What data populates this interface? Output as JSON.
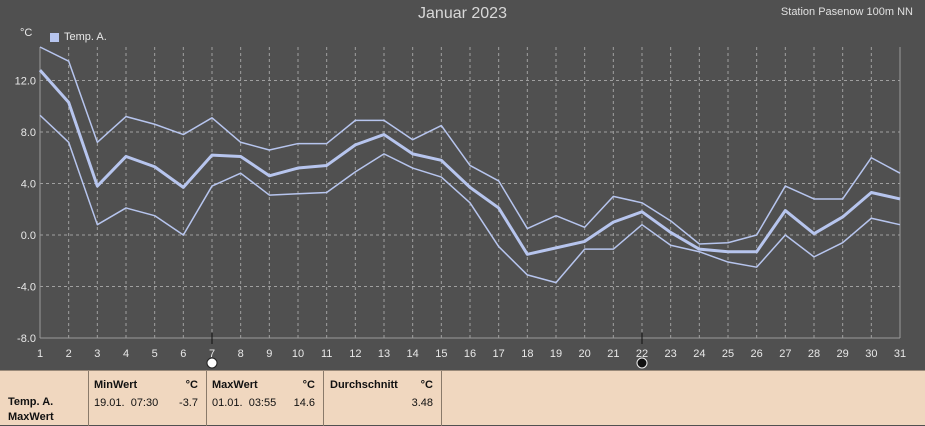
{
  "title": "Januar 2023",
  "station": "Station Pasenow 100m NN",
  "unit": "°C",
  "legend_label": "Temp. A.",
  "colors": {
    "series": "#b7c5ee",
    "background": "#505050",
    "grid": "#a0a0a0",
    "stats_bg": "#f0d7bf"
  },
  "markers": [
    {
      "day": 7,
      "icon": "full-moon-icon"
    },
    {
      "day": 22,
      "icon": "new-moon-icon"
    }
  ],
  "chart_data": {
    "type": "line",
    "title": "Januar 2023",
    "xlabel": "",
    "ylabel": "°C",
    "x": [
      1,
      2,
      3,
      4,
      5,
      6,
      7,
      8,
      9,
      10,
      11,
      12,
      13,
      14,
      15,
      16,
      17,
      18,
      19,
      20,
      21,
      22,
      23,
      24,
      25,
      26,
      27,
      28,
      29,
      30,
      31
    ],
    "xlim": [
      1,
      31
    ],
    "ylim": [
      -8,
      14.6
    ],
    "yticks": [
      -8.0,
      -4.0,
      0.0,
      4.0,
      8.0,
      12.0
    ],
    "ytick_labels": [
      "-8.0",
      "-4.0",
      "0.0",
      "4.0",
      "8.0",
      "12.0"
    ],
    "grid": true,
    "legend": "top-left",
    "series": [
      {
        "name": "Temp. A.",
        "role": "max",
        "values": [
          14.6,
          13.5,
          7.2,
          9.2,
          8.6,
          7.8,
          9.1,
          7.2,
          6.6,
          7.1,
          7.1,
          8.9,
          8.9,
          7.4,
          8.5,
          5.4,
          4.2,
          0.5,
          1.5,
          0.6,
          3.0,
          2.5,
          1.1,
          -0.7,
          -0.6,
          0.0,
          3.8,
          2.8,
          2.8,
          6.0,
          4.8
        ]
      },
      {
        "name": "Temp. A.",
        "role": "mean",
        "values": [
          12.8,
          10.3,
          3.8,
          6.1,
          5.3,
          3.7,
          6.2,
          6.1,
          4.6,
          5.2,
          5.4,
          7.0,
          7.8,
          6.3,
          5.8,
          3.7,
          2.1,
          -1.5,
          -1.0,
          -0.5,
          1.0,
          1.8,
          0.2,
          -1.1,
          -1.3,
          -1.3,
          1.9,
          0.1,
          1.4,
          3.3,
          2.8
        ]
      },
      {
        "name": "Temp. A.",
        "role": "min",
        "values": [
          9.3,
          7.2,
          0.8,
          2.1,
          1.5,
          0.0,
          3.8,
          4.8,
          3.1,
          3.2,
          3.3,
          4.9,
          6.3,
          5.2,
          4.5,
          2.5,
          -0.9,
          -3.1,
          -3.7,
          -1.1,
          -1.1,
          0.8,
          -0.8,
          -1.3,
          -2.1,
          -2.5,
          0.0,
          -1.7,
          -0.6,
          1.3,
          0.8
        ]
      }
    ]
  },
  "stats": {
    "row_label_1": "Temp. A.",
    "row_label_2": "MaxWert",
    "min": {
      "header": "MinWert",
      "unit": "°C",
      "datetime": "19.01.  07:30",
      "value": "-3.7"
    },
    "max": {
      "header": "MaxWert",
      "unit": "°C",
      "datetime": "01.01.  03:55",
      "value": "14.6"
    },
    "avg": {
      "header": "Durchschnitt",
      "unit": "°C",
      "value": "3.48"
    }
  }
}
